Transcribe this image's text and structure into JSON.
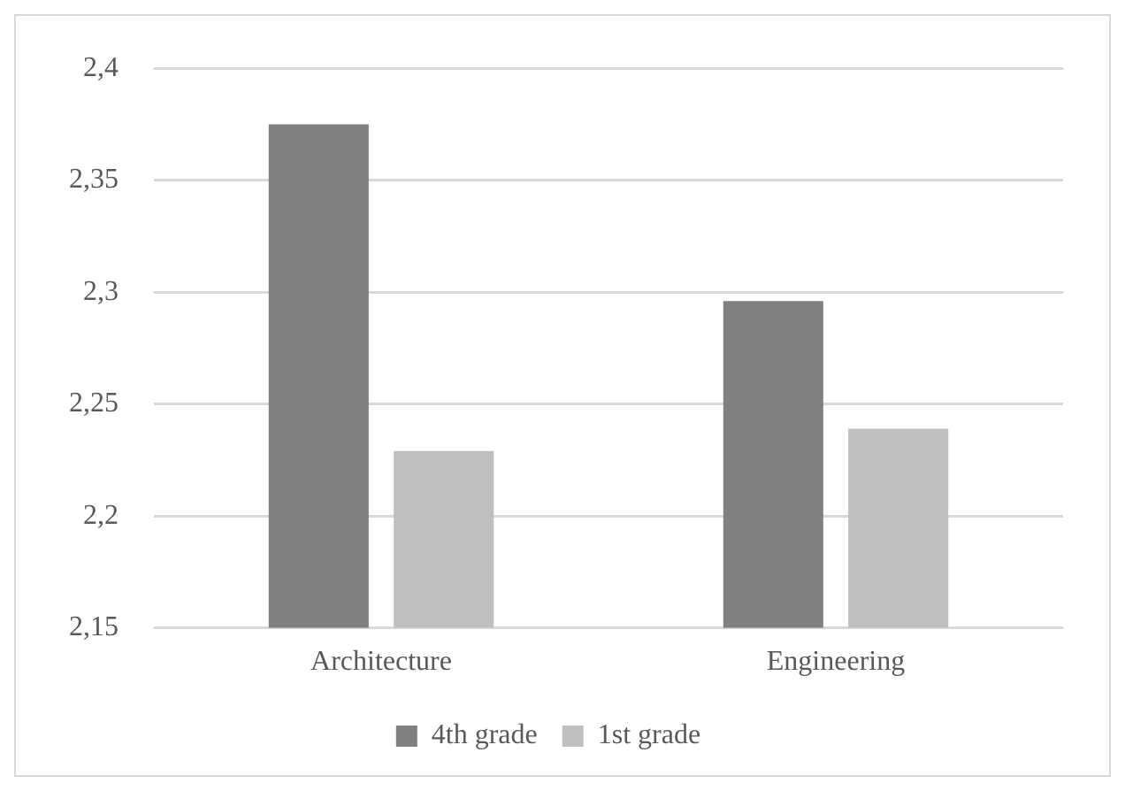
{
  "chart_data": {
    "type": "bar",
    "categories": [
      "Architecture",
      "Engineering"
    ],
    "series": [
      {
        "name": "4th grade",
        "color": "#808080",
        "values": [
          2.375,
          2.296
        ]
      },
      {
        "name": "1st grade",
        "color": "#bfbfbf",
        "values": [
          2.229,
          2.239
        ]
      }
    ],
    "ylim": [
      2.15,
      2.4
    ],
    "yticks": [
      {
        "value": 2.15,
        "label": "2,15"
      },
      {
        "value": 2.2,
        "label": "2,2"
      },
      {
        "value": 2.25,
        "label": "2,25"
      },
      {
        "value": 2.3,
        "label": "2,3"
      },
      {
        "value": 2.35,
        "label": "2,35"
      },
      {
        "value": 2.4,
        "label": "2,4"
      }
    ],
    "grid": "y",
    "legend": "bottom"
  }
}
